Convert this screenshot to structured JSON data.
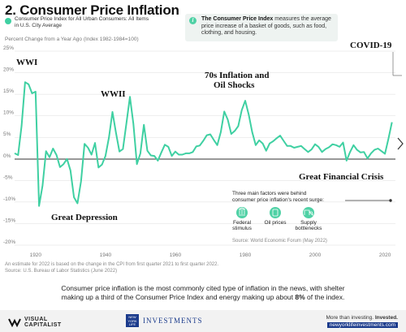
{
  "title": "2. Consumer Price Inflation",
  "legend_label": "Consumer Price Index for All Urban Consumers: All Items in U.S. City Average",
  "subtitle": "Percent Change from a Year Ago (Index 1982-1984=100)",
  "infobox": {
    "bold": "The Consumer Price Index",
    "text": " measures the average price increase of a basket of goods, such as food, clothing, and housing."
  },
  "annotations": {
    "wwi": "WWI",
    "wwii": "WWII",
    "seventies_1": "70s Inflation and",
    "seventies_2": "Oil Shocks",
    "covid": "COVID-19",
    "depression": "Great Depression",
    "gfc": "Great Financial Crisis"
  },
  "factors": {
    "heading_1": "Three main factors were behind",
    "heading_2": "consumer price inflation's recent surge:",
    "items": [
      {
        "label_1": "Federal",
        "label_2": "stimulus",
        "icon": "government-building-icon"
      },
      {
        "label_1": "Oil prices",
        "label_2": "",
        "icon": "oil-barrel-icon"
      },
      {
        "label_1": "Supply",
        "label_2": "bottlenecks",
        "icon": "truck-icon"
      }
    ],
    "source": "Source: World Economic Forum (May 2022)"
  },
  "footnote_1": "An estimate for 2022 is based on the change in the CPI from first quarter 2021 to first quarter 2022.",
  "footnote_2": "Source: U.S. Bureau of Labor Statistics (June 2022)",
  "caption_1": "Consumer price inflation is the most commonly cited type of inflation in the news, with shelter",
  "caption_2": "making up a third of the Consumer Price Index and energy making up about ",
  "caption_bold": "8%",
  "caption_3": " of the index.",
  "footer": {
    "vc_1": "VISUAL",
    "vc_2": "CAPITALIST",
    "nyl_1": "NEW",
    "nyl_2": "YORK",
    "nyl_3": "LIFE",
    "investments": "INVESTMENTS",
    "tagline_1": "More than investing. ",
    "tagline_bold": "Invested.",
    "site": "newyorklifeinvestments.com"
  },
  "colors": {
    "line": "#3fd0a2",
    "accent": "#4fd1a5",
    "axis": "#333333",
    "grid": "#dddddd"
  },
  "chart_data": {
    "type": "line",
    "title": "Consumer Price Index for All Urban Consumers: All Items in U.S. City Average",
    "ylabel": "Percent Change from a Year Ago (Index 1982-1984=100)",
    "xlim": [
      1914,
      2023
    ],
    "ylim": [
      -20,
      25
    ],
    "yticks": [
      "-20%",
      "-15%",
      "-10%",
      "-5%",
      "0%",
      "5%",
      "10%",
      "15%",
      "20%",
      "25%"
    ],
    "xticks": [
      "1920",
      "1940",
      "1960",
      "1980",
      "2000",
      "2020"
    ],
    "series": [
      {
        "name": "Consumer Price Index for All Urban Consumers: All Items in U.S. City Average",
        "x": [
          1914,
          1915,
          1916,
          1917,
          1918,
          1919,
          1920,
          1921,
          1922,
          1923,
          1924,
          1925,
          1926,
          1927,
          1928,
          1929,
          1930,
          1931,
          1932,
          1933,
          1934,
          1935,
          1936,
          1937,
          1938,
          1939,
          1940,
          1941,
          1942,
          1943,
          1944,
          1945,
          1946,
          1947,
          1948,
          1949,
          1950,
          1951,
          1952,
          1953,
          1954,
          1955,
          1956,
          1957,
          1958,
          1959,
          1960,
          1961,
          1962,
          1963,
          1964,
          1965,
          1966,
          1967,
          1968,
          1969,
          1970,
          1971,
          1972,
          1973,
          1974,
          1975,
          1976,
          1977,
          1978,
          1979,
          1980,
          1981,
          1982,
          1983,
          1984,
          1985,
          1986,
          1987,
          1988,
          1989,
          1990,
          1991,
          1992,
          1993,
          1994,
          1995,
          1996,
          1997,
          1998,
          1999,
          2000,
          2001,
          2002,
          2003,
          2004,
          2005,
          2006,
          2007,
          2008,
          2009,
          2010,
          2011,
          2012,
          2013,
          2014,
          2015,
          2016,
          2017,
          2018,
          2019,
          2020,
          2021,
          2022
        ],
        "values": [
          1.3,
          0.9,
          7.7,
          17.8,
          17.3,
          15.2,
          15.6,
          -10.9,
          -6.2,
          1.8,
          0.4,
          2.4,
          0.9,
          -1.9,
          -1.2,
          0.0,
          -2.7,
          -8.9,
          -10.3,
          -5.2,
          3.5,
          2.6,
          1.0,
          3.7,
          -2.0,
          -1.3,
          0.7,
          5.0,
          10.9,
          6.1,
          1.7,
          2.3,
          8.3,
          14.4,
          8.1,
          -1.2,
          1.3,
          7.9,
          1.9,
          0.8,
          0.7,
          -0.4,
          1.5,
          3.3,
          2.8,
          0.7,
          1.7,
          1.0,
          1.0,
          1.3,
          1.3,
          1.6,
          2.9,
          3.1,
          4.2,
          5.5,
          5.7,
          4.4,
          3.2,
          6.2,
          11.0,
          9.1,
          5.8,
          6.5,
          7.6,
          11.3,
          13.5,
          10.3,
          6.2,
          3.2,
          4.3,
          3.6,
          1.9,
          3.6,
          4.1,
          4.8,
          5.4,
          4.2,
          3.0,
          3.0,
          2.6,
          2.8,
          3.0,
          2.3,
          1.6,
          2.2,
          3.4,
          2.8,
          1.6,
          2.3,
          2.7,
          3.4,
          3.2,
          2.8,
          3.8,
          -0.4,
          1.6,
          3.2,
          2.1,
          1.5,
          1.6,
          0.1,
          1.3,
          2.1,
          2.4,
          1.8,
          1.2,
          4.7,
          8.5
        ]
      }
    ],
    "annotations": [
      "WWI",
      "WWII",
      "70s Inflation and Oil Shocks",
      "COVID-19",
      "Great Depression",
      "Great Financial Crisis"
    ]
  }
}
